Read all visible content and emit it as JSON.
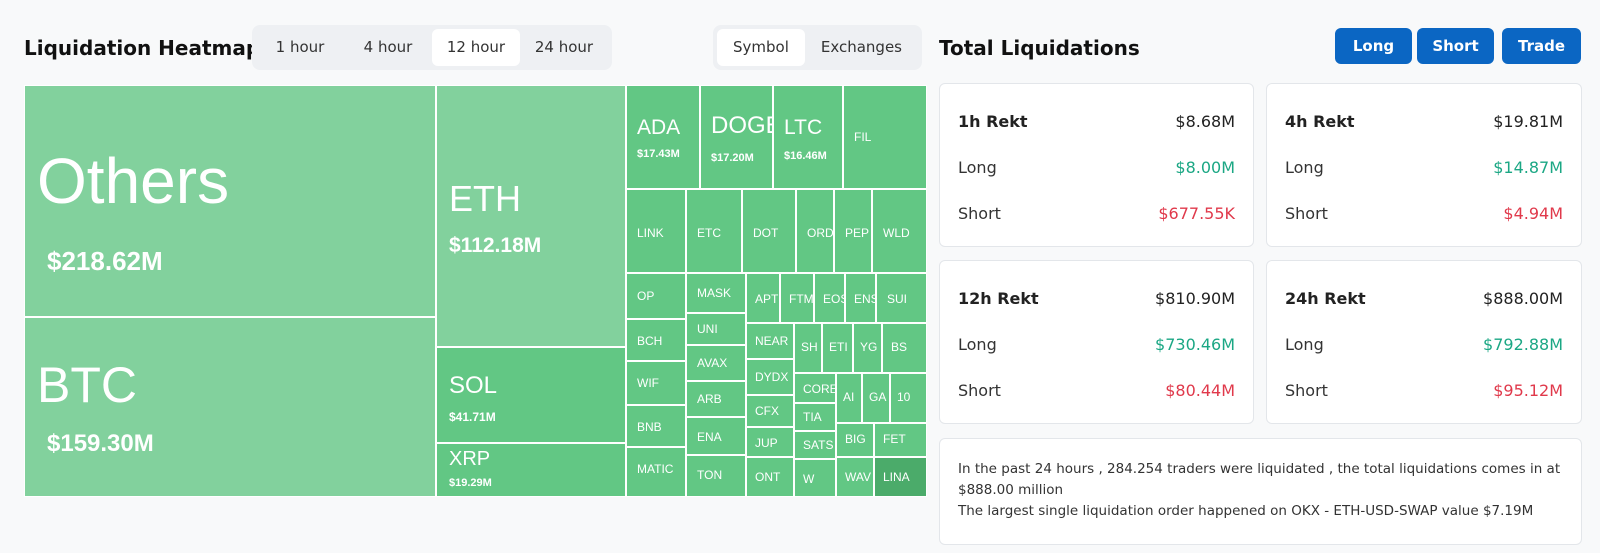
{
  "header": {
    "heatmap_title": "Liquidation Heatmap",
    "total_title": "Total Liquidations",
    "time_options": [
      "1 hour",
      "4 hour",
      "12 hour",
      "24 hour"
    ],
    "time_selected": "12 hour",
    "mode_options": [
      "Symbol",
      "Exchanges"
    ],
    "mode_selected": "Symbol",
    "actions": {
      "long": "Long",
      "short": "Short",
      "trade": "Trade"
    }
  },
  "heatmap": {
    "cells": [
      {
        "symbol": "Others",
        "value": "$218.62M"
      },
      {
        "symbol": "BTC",
        "value": "$159.30M"
      },
      {
        "symbol": "ETH",
        "value": "$112.18M"
      },
      {
        "symbol": "SOL",
        "value": "$41.71M"
      },
      {
        "symbol": "XRP",
        "value": "$19.29M"
      },
      {
        "symbol": "ADA",
        "value": "$17.43M"
      },
      {
        "symbol": "DOGE",
        "value": "$17.20M"
      },
      {
        "symbol": "LTC",
        "value": "$16.46M"
      },
      {
        "symbol": "FIL",
        "value": ""
      },
      {
        "symbol": "LINK",
        "value": ""
      },
      {
        "symbol": "ETC",
        "value": ""
      },
      {
        "symbol": "DOT",
        "value": ""
      },
      {
        "symbol": "ORD",
        "value": ""
      },
      {
        "symbol": "PEP",
        "value": ""
      },
      {
        "symbol": "WLD",
        "value": ""
      },
      {
        "symbol": "OP",
        "value": ""
      },
      {
        "symbol": "MASK",
        "value": ""
      },
      {
        "symbol": "APT",
        "value": ""
      },
      {
        "symbol": "FTM",
        "value": ""
      },
      {
        "symbol": "EOS",
        "value": ""
      },
      {
        "symbol": "ENS",
        "value": ""
      },
      {
        "symbol": "SUI",
        "value": ""
      },
      {
        "symbol": "BCH",
        "value": ""
      },
      {
        "symbol": "UNI",
        "value": ""
      },
      {
        "symbol": "NEAR",
        "value": ""
      },
      {
        "symbol": "SH",
        "value": ""
      },
      {
        "symbol": "ETI",
        "value": ""
      },
      {
        "symbol": "YG",
        "value": ""
      },
      {
        "symbol": "BS",
        "value": ""
      },
      {
        "symbol": "AVAX",
        "value": ""
      },
      {
        "symbol": "DYDX",
        "value": ""
      },
      {
        "symbol": "WIF",
        "value": ""
      },
      {
        "symbol": "CORE",
        "value": ""
      },
      {
        "symbol": "AI",
        "value": ""
      },
      {
        "symbol": "GA",
        "value": ""
      },
      {
        "symbol": "10",
        "value": ""
      },
      {
        "symbol": "ARB",
        "value": ""
      },
      {
        "symbol": "CFX",
        "value": ""
      },
      {
        "symbol": "TIA",
        "value": ""
      },
      {
        "symbol": "BNB",
        "value": ""
      },
      {
        "symbol": "ENA",
        "value": ""
      },
      {
        "symbol": "JUP",
        "value": ""
      },
      {
        "symbol": "SATS",
        "value": ""
      },
      {
        "symbol": "BIG",
        "value": ""
      },
      {
        "symbol": "FET",
        "value": ""
      },
      {
        "symbol": "MATIC",
        "value": ""
      },
      {
        "symbol": "TON",
        "value": ""
      },
      {
        "symbol": "ONT",
        "value": ""
      },
      {
        "symbol": "W",
        "value": ""
      },
      {
        "symbol": "WAV",
        "value": ""
      },
      {
        "symbol": "LINA",
        "value": ""
      }
    ]
  },
  "cards": [
    {
      "title": "1h Rekt",
      "total": "$8.68M",
      "long_label": "Long",
      "long": "$8.00M",
      "short_label": "Short",
      "short": "$677.55K"
    },
    {
      "title": "4h Rekt",
      "total": "$19.81M",
      "long_label": "Long",
      "long": "$14.87M",
      "short_label": "Short",
      "short": "$4.94M"
    },
    {
      "title": "12h Rekt",
      "total": "$810.90M",
      "long_label": "Long",
      "long": "$730.46M",
      "short_label": "Short",
      "short": "$80.44M"
    },
    {
      "title": "24h Rekt",
      "total": "$888.00M",
      "long_label": "Long",
      "long": "$792.88M",
      "short_label": "Short",
      "short": "$95.12M"
    }
  ],
  "summary": {
    "line1": "In the past 24 hours , 284.254 traders were liquidated , the total liquidations comes in at $888.00 million",
    "line2": "The largest single liquidation order happened on OKX - ETH-USD-SWAP value $7.19M"
  },
  "colors": {
    "positive": "#1ba784",
    "negative": "#e0394b",
    "button": "#0b66c3",
    "tile_light": "#82d19d",
    "tile_mid": "#62c784",
    "tile_dark": "#4bab6a"
  }
}
